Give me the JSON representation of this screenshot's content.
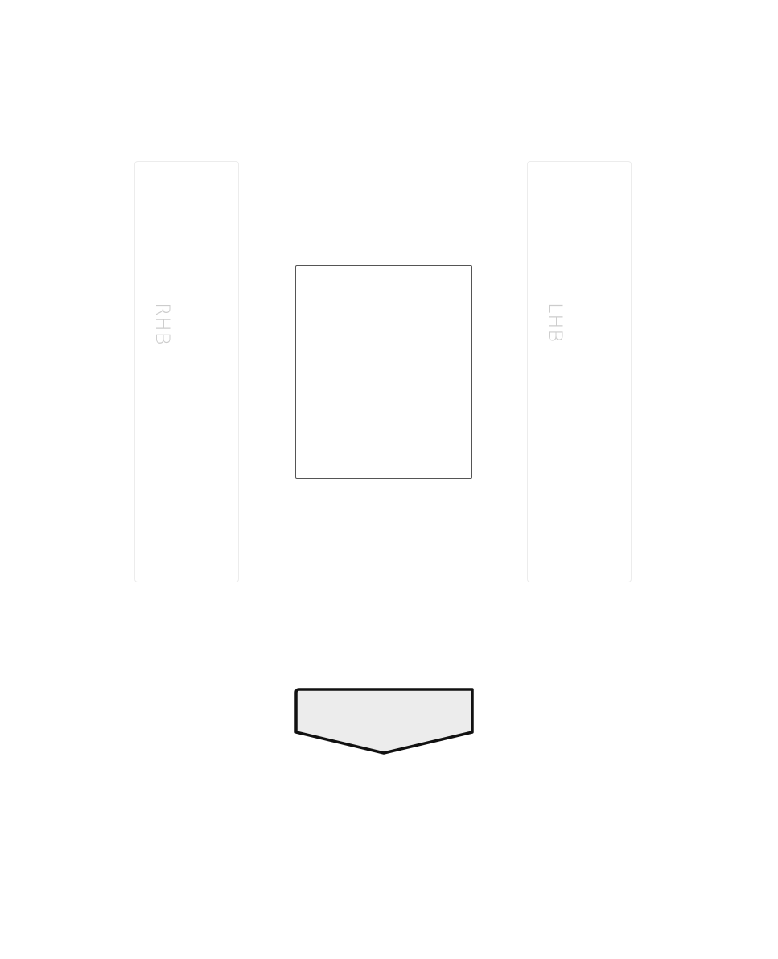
{
  "zones": {
    "right_label": "RHB",
    "left_label": "LHB"
  },
  "colors": {
    "zone_border": "#ececec",
    "zone_label": "#cccccc",
    "box_border": "#555555",
    "arrow_fill": "#ececec",
    "arrow_stroke": "#111111"
  }
}
